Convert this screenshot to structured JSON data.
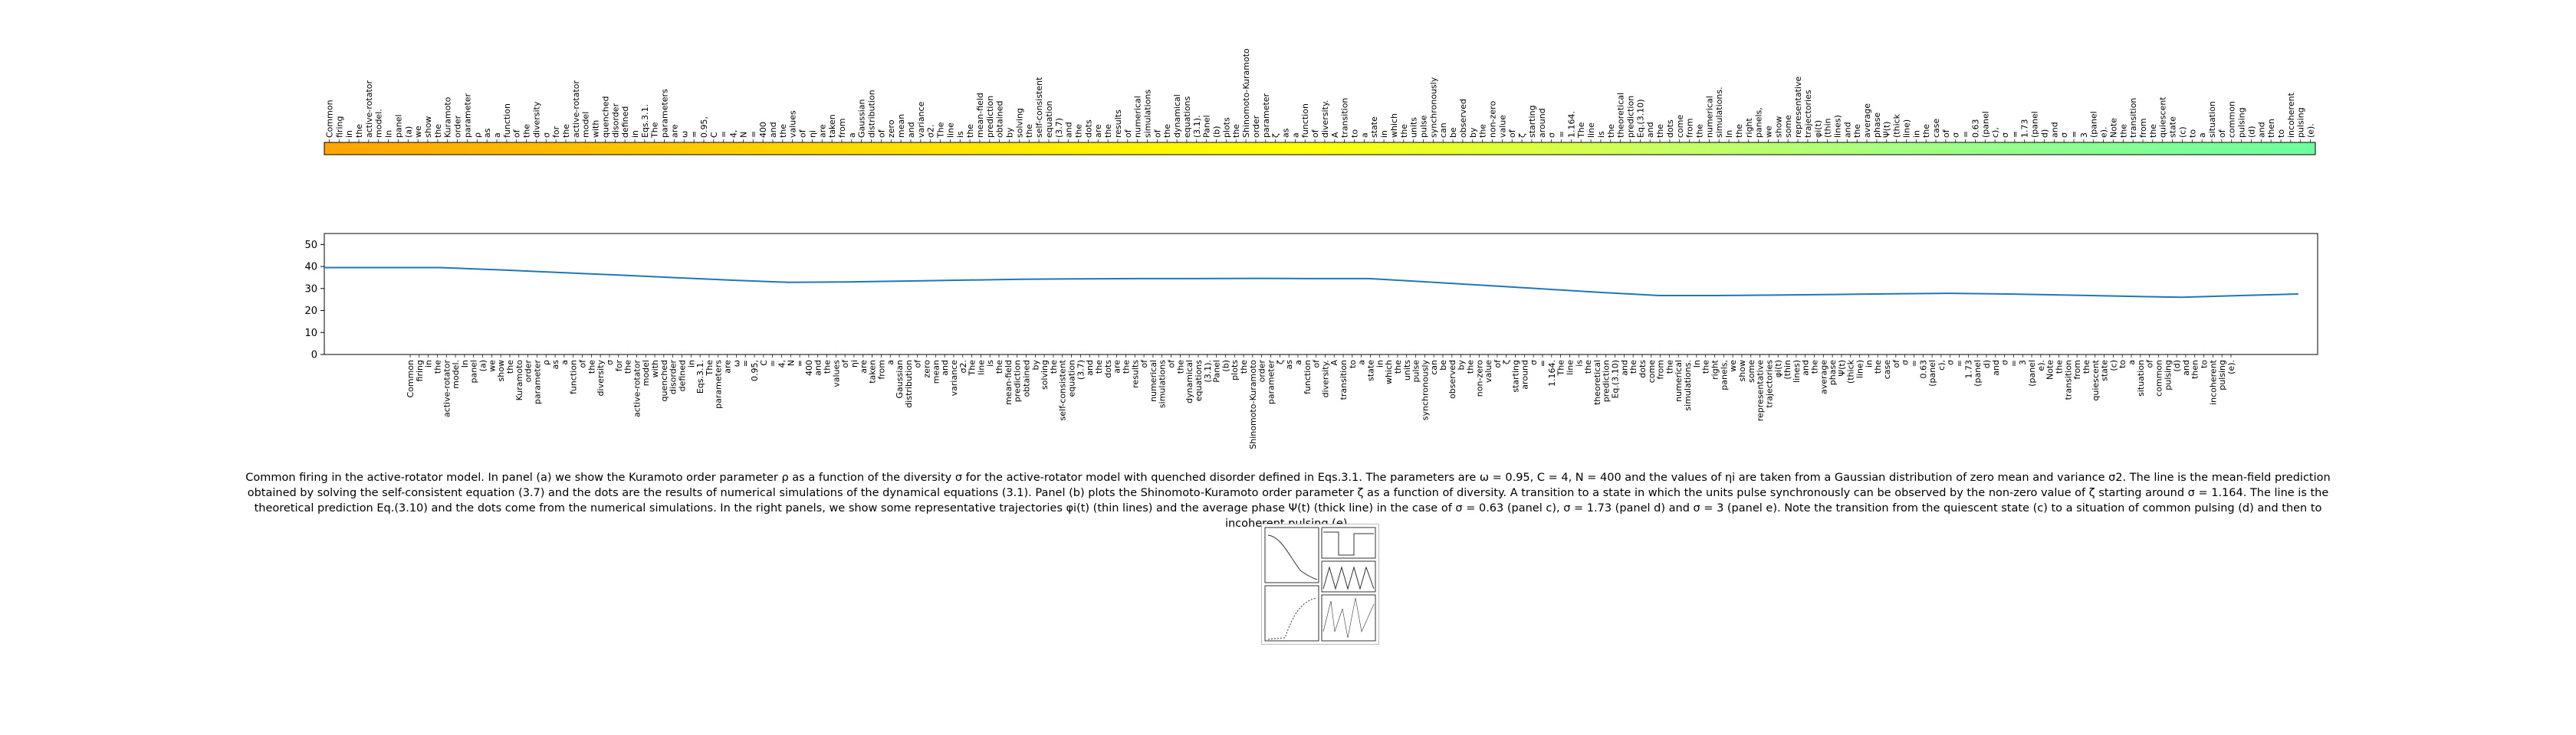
{
  "chart_data": [
    {
      "type": "heatmap",
      "title": "",
      "words": [
        "Common",
        "firing",
        "in",
        "the",
        "active-rotator",
        "model.",
        "In",
        "panel",
        "(a)",
        "we",
        "show",
        "the",
        "Kuramoto",
        "order",
        "parameter",
        "ρ",
        "as",
        "a",
        "function",
        "of",
        "the",
        "diversity",
        "σ",
        "for",
        "the",
        "active-rotator",
        "model",
        "with",
        "quenched",
        "disorder",
        "defined",
        "in",
        "Eqs.3.1.",
        "The",
        "parameters",
        "are",
        "ω",
        "=",
        "0.95,",
        "C",
        "=",
        "4,",
        "N",
        "=",
        "400",
        "and",
        "the",
        "values",
        "of",
        "ηi",
        "are",
        "taken",
        "from",
        "a",
        "Gaussian",
        "distribution",
        "of",
        "zero",
        "mean",
        "and",
        "variance",
        "σ2.",
        "The",
        "line",
        "is",
        "the",
        "mean-field",
        "prediction",
        "obtained",
        "by",
        "solving",
        "the",
        "self-consistent",
        "equation",
        "(3.7)",
        "and",
        "the",
        "dots",
        "are",
        "the",
        "results",
        "of",
        "numerical",
        "simulations",
        "of",
        "the",
        "dynamical",
        "equations",
        "(3.1).",
        "Panel",
        "(b)",
        "plots",
        "the",
        "Shinomoto-Kuramoto",
        "order",
        "parameter",
        "ζ",
        "as",
        "a",
        "function",
        "of",
        "diversity.",
        "A",
        "transition",
        "to",
        "a",
        "state",
        "in",
        "which",
        "the",
        "units",
        "pulse",
        "synchronously",
        "can",
        "be",
        "observed",
        "by",
        "the",
        "non-zero",
        "value",
        "of",
        "ζ",
        "starting",
        "around",
        "σ",
        "=",
        "1.164.",
        "The",
        "line",
        "is",
        "the",
        "theoretical",
        "prediction",
        "Eq.(3.10)",
        "and",
        "the",
        "dots",
        "come",
        "from",
        "the",
        "numerical",
        "simulations.",
        "In",
        "the",
        "right",
        "panels,",
        "we",
        "show",
        "some",
        "representative",
        "trajectories",
        "φi(t)",
        "(thin",
        "lines)",
        "and",
        "the",
        "average",
        "phase",
        "Ψ(t)",
        "(thick",
        "line)",
        "in",
        "the",
        "case",
        "of",
        "σ",
        "=",
        "0.63",
        "(panel",
        "c),",
        "σ",
        "=",
        "1.73",
        "(panel",
        "d)",
        "and",
        "σ",
        "=",
        "3",
        "(panel",
        "e).",
        "Note",
        "the",
        "transition",
        "from",
        "the",
        "quiescent",
        "state",
        "(c)",
        "to",
        "a",
        "situation",
        "of",
        "common",
        "pulsing",
        "(d)",
        "and",
        "then",
        "to",
        "incoherent",
        "pulsing",
        "(e)."
      ],
      "colors": [
        "#ffa500",
        "#ffab00",
        "#ffb100",
        "#ffb700",
        "#ffbd00",
        "#ffc300",
        "#ffc900",
        "#ffcf00",
        "#ffd500",
        "#ffdb00",
        "#ffe100",
        "#ffe700",
        "#ffed00",
        "#fff200",
        "#fff700",
        "#fffb00",
        "#ffff00",
        "#f7ff10",
        "#eeff20",
        "#e5ff30",
        "#dcff40",
        "#d3ff50",
        "#caff60",
        "#c1ff68",
        "#b8ff70",
        "#afff78",
        "#a6ff80",
        "#9dff86",
        "#94ff8c",
        "#8cff90",
        "#84ff94",
        "#7cff98",
        "#74ff9c",
        "#6cffa0"
      ],
      "color_stops_note": "",
      "grid": false
    },
    {
      "type": "line",
      "title": "",
      "xlabel": "",
      "ylabel": "",
      "ylim": [
        0,
        55
      ],
      "yticks": [
        0,
        10,
        20,
        30,
        40,
        50
      ],
      "x_labels": [
        "Common",
        "firing",
        "in",
        "the",
        "active-rotator",
        "model.",
        "In",
        "panel",
        "(a)",
        "we",
        "show",
        "the",
        "Kuramoto",
        "order",
        "parameter",
        "ρ",
        "as",
        "a",
        "function",
        "of",
        "the",
        "diversity",
        "σ",
        "for",
        "the",
        "active-rotator",
        "model",
        "with",
        "quenched",
        "disorder",
        "defined",
        "in",
        "Eqs.3.1.",
        "The",
        "parameters",
        "are",
        "ω",
        "=",
        "0.95,",
        "C",
        "=",
        "4,",
        "N",
        "=",
        "400",
        "and",
        "the",
        "values",
        "of",
        "ηi",
        "are",
        "taken",
        "from",
        "a",
        "Gaussian",
        "distribution",
        "of",
        "zero",
        "mean",
        "and",
        "variance",
        "σ2.",
        "The",
        "line",
        "is",
        "the",
        "mean-field",
        "prediction",
        "obtained",
        "by",
        "solving",
        "the",
        "self-consistent",
        "equation",
        "(3.7)",
        "and",
        "the",
        "dots",
        "are",
        "the",
        "results",
        "of",
        "numerical",
        "simulations",
        "of",
        "the",
        "dynamical",
        "equations",
        "(3.1).",
        "Panel",
        "(b)",
        "plots",
        "the",
        "Shinomoto-Kuramoto",
        "order",
        "parameter",
        "ζ",
        "as",
        "a",
        "function",
        "of",
        "diversity.",
        "A",
        "transition",
        "to",
        "a",
        "state",
        "in",
        "which",
        "the",
        "units",
        "pulse",
        "synchronously",
        "can",
        "be",
        "observed",
        "by",
        "the",
        "non-zero",
        "value",
        "of",
        "ζ",
        "starting",
        "around",
        "σ",
        "=",
        "1.164.",
        "The",
        "line",
        "is",
        "the",
        "theoretical",
        "prediction",
        "Eq.(3.10)",
        "and",
        "the",
        "dots",
        "come",
        "from",
        "the",
        "numerical",
        "simulations.",
        "In",
        "the",
        "right",
        "panels,",
        "we",
        "show",
        "some",
        "representative",
        "trajectories",
        "φi(t)",
        "(thin",
        "lines)",
        "and",
        "the",
        "average",
        "phase",
        "Ψ(t)",
        "(thick",
        "line)",
        "in",
        "the",
        "case",
        "of",
        "σ",
        "=",
        "0.63",
        "(panel",
        "c),",
        "σ",
        "=",
        "1.73",
        "(panel",
        "d)",
        "and",
        "σ",
        "=",
        "3",
        "(panel",
        "e).",
        "Note",
        "the",
        "transition",
        "from",
        "the",
        "quiescent",
        "state",
        "(c)",
        "to",
        "a",
        "situation",
        "of",
        "common",
        "pulsing",
        "(d)",
        "and",
        "then",
        "to",
        "incoherent",
        "pulsing",
        "(e)."
      ],
      "series": [
        {
          "color": "#1f77b4",
          "points": [
            [
              0,
              39.5
            ],
            [
              6,
              39.5
            ],
            [
              12,
              39.5
            ],
            [
              18,
              38.5
            ],
            [
              24,
              37.3
            ],
            [
              30,
              36.2
            ],
            [
              36,
              35.0
            ],
            [
              42,
              33.8
            ],
            [
              48,
              32.8
            ],
            [
              54,
              33.0
            ],
            [
              60,
              33.4
            ],
            [
              66,
              33.8
            ],
            [
              72,
              34.2
            ],
            [
              78,
              34.4
            ],
            [
              84,
              34.5
            ],
            [
              90,
              34.5
            ],
            [
              96,
              34.6
            ],
            [
              102,
              34.5
            ],
            [
              108,
              34.5
            ],
            [
              114,
              33.0
            ],
            [
              120,
              31.4
            ],
            [
              126,
              29.8
            ],
            [
              132,
              28.2
            ],
            [
              138,
              26.8
            ],
            [
              144,
              26.8
            ],
            [
              150,
              27.0
            ],
            [
              156,
              27.3
            ],
            [
              162,
              27.6
            ],
            [
              168,
              27.8
            ],
            [
              174,
              27.5
            ],
            [
              180,
              27.0
            ],
            [
              186,
              26.5
            ],
            [
              192,
              26.0
            ],
            [
              198,
              26.8
            ],
            [
              204,
              27.5
            ]
          ]
        }
      ],
      "grid": false
    }
  ],
  "caption": {
    "text": "Common firing in the active-rotator model. In panel (a) we show the Kuramoto order parameter ρ as a function of the diversity σ for the active-rotator model with quenched disorder defined in Eqs.3.1. The parameters are ω = 0.95, C = 4, N = 400 and the values of ηi are taken from a Gaussian distribution of zero mean and variance σ2. The line is the mean-field prediction obtained by solving the self-consistent equation (3.7) and the dots are the results of numerical simulations of the dynamical equations (3.1). Panel (b) plots the Shinomoto-Kuramoto order parameter ζ as a function of diversity. A transition to a state in which the units pulse synchronously can be observed by the non-zero value of ζ starting around σ = 1.164. The line is the theoretical prediction Eq.(3.10) and the dots come from the numerical simulations. In the right panels, we show some representative trajectories φi(t) (thin lines) and the average phase Ψ(t) (thick line) in the case of σ = 0.63 (panel c), σ = 1.73 (panel d) and σ = 3 (panel e). Note the transition from the quiescent state (c) to a situation of common pulsing (d) and then to incoherent pulsing (e)."
  },
  "thumbnail": {
    "icon": "figure-thumbnail-icon"
  }
}
